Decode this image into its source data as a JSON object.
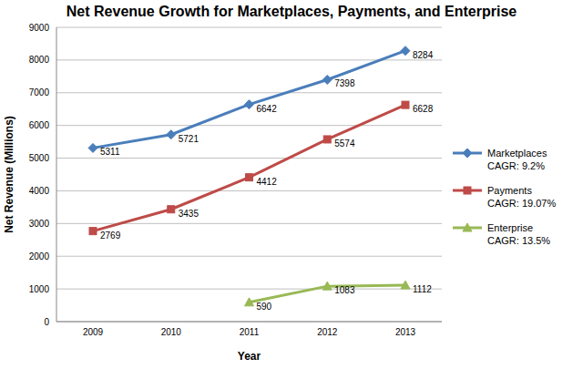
{
  "chart_data": {
    "type": "line",
    "title": "Net Revenue Growth for Marketplaces, Payments, and Enterprise",
    "x_label": "Year",
    "y_label": "Net Revenue (Millions)",
    "categories": [
      "2009",
      "2010",
      "2011",
      "2012",
      "2013"
    ],
    "series": [
      {
        "name": "Marketplaces",
        "legend_note": "CAGR: 9.2%",
        "color": "#4a7ebb",
        "marker": "diamond",
        "values": [
          5311,
          5721,
          6642,
          7398,
          8284
        ]
      },
      {
        "name": "Payments",
        "legend_note": "CAGR: 19.07%",
        "color": "#be4b48",
        "marker": "square",
        "values": [
          2769,
          3435,
          4412,
          5574,
          6628
        ]
      },
      {
        "name": "Enterprise",
        "legend_note": "CAGR: 13.5%",
        "color": "#98b954",
        "marker": "triangle",
        "values": [
          null,
          null,
          590,
          1083,
          1112
        ]
      }
    ],
    "ylim": [
      0,
      9000
    ],
    "yticks": [
      0,
      1000,
      2000,
      3000,
      4000,
      5000,
      6000,
      7000,
      8000,
      9000
    ],
    "grid": true,
    "legend": "right",
    "data_labels": true
  }
}
